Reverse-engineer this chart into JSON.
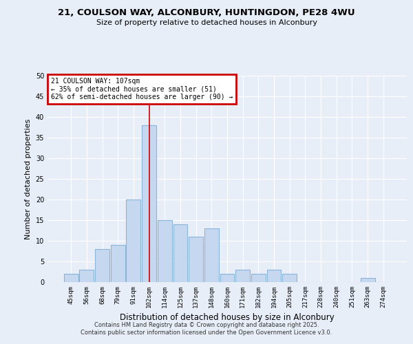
{
  "title1": "21, COULSON WAY, ALCONBURY, HUNTINGDON, PE28 4WU",
  "title2": "Size of property relative to detached houses in Alconbury",
  "xlabel": "Distribution of detached houses by size in Alconbury",
  "ylabel": "Number of detached properties",
  "bar_labels": [
    "45sqm",
    "56sqm",
    "68sqm",
    "79sqm",
    "91sqm",
    "102sqm",
    "114sqm",
    "125sqm",
    "137sqm",
    "148sqm",
    "160sqm",
    "171sqm",
    "182sqm",
    "194sqm",
    "205sqm",
    "217sqm",
    "228sqm",
    "240sqm",
    "251sqm",
    "263sqm",
    "274sqm"
  ],
  "bar_values": [
    2,
    3,
    8,
    9,
    20,
    38,
    15,
    14,
    11,
    13,
    2,
    3,
    2,
    3,
    2,
    0,
    0,
    0,
    0,
    1,
    0
  ],
  "bar_color": "#c5d8f0",
  "bar_edge_color": "#8ab4d8",
  "vline_x": 5,
  "vline_color": "#cc0000",
  "annotation_line1": "21 COULSON WAY: 107sqm",
  "annotation_line2": "← 35% of detached houses are smaller (51)",
  "annotation_line3": "62% of semi-detached houses are larger (90) →",
  "annotation_box_color": "#cc0000",
  "ylim": [
    0,
    50
  ],
  "yticks": [
    0,
    5,
    10,
    15,
    20,
    25,
    30,
    35,
    40,
    45,
    50
  ],
  "footer1": "Contains HM Land Registry data © Crown copyright and database right 2025.",
  "footer2": "Contains public sector information licensed under the Open Government Licence v3.0.",
  "bg_color": "#e8eef8",
  "plot_bg_color": "#e8eef8",
  "grid_color": "#ffffff"
}
